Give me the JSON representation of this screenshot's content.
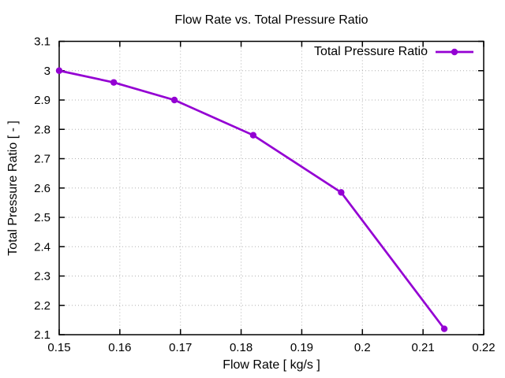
{
  "chart_data": {
    "type": "line",
    "title": "Flow Rate vs. Total Pressure Ratio",
    "xlabel": "Flow Rate [ kg/s ]",
    "ylabel": "Total Pressure Ratio [ - ]",
    "xlim": [
      0.15,
      0.22
    ],
    "ylim": [
      2.1,
      3.1
    ],
    "xticks": {
      "values": [
        0.15,
        0.16,
        0.17,
        0.18,
        0.19,
        0.2,
        0.21,
        0.22
      ],
      "labels": [
        "0.15",
        "0.16",
        "0.17",
        "0.18",
        "0.19",
        "0.2",
        "0.21",
        "0.22"
      ]
    },
    "yticks": {
      "values": [
        2.1,
        2.2,
        2.3,
        2.4,
        2.5,
        2.6,
        2.7,
        2.8,
        2.9,
        3.0,
        3.1
      ],
      "labels": [
        "2.1",
        "2.2",
        "2.3",
        "2.4",
        "2.5",
        "2.6",
        "2.7",
        "2.8",
        "2.9",
        "3",
        "3.1"
      ]
    },
    "grid": "dotted",
    "grid_color": "#b0b0b0",
    "axis_color": "#000000",
    "background": "#ffffff",
    "legend_position": "top-right-inside",
    "series": [
      {
        "name": "Total Pressure Ratio",
        "color": "#9400d3",
        "marker": "filled-circle",
        "x": [
          0.15,
          0.159,
          0.169,
          0.182,
          0.1965,
          0.2135
        ],
        "y": [
          3.0,
          2.96,
          2.9,
          2.78,
          2.585,
          2.12
        ]
      }
    ]
  }
}
